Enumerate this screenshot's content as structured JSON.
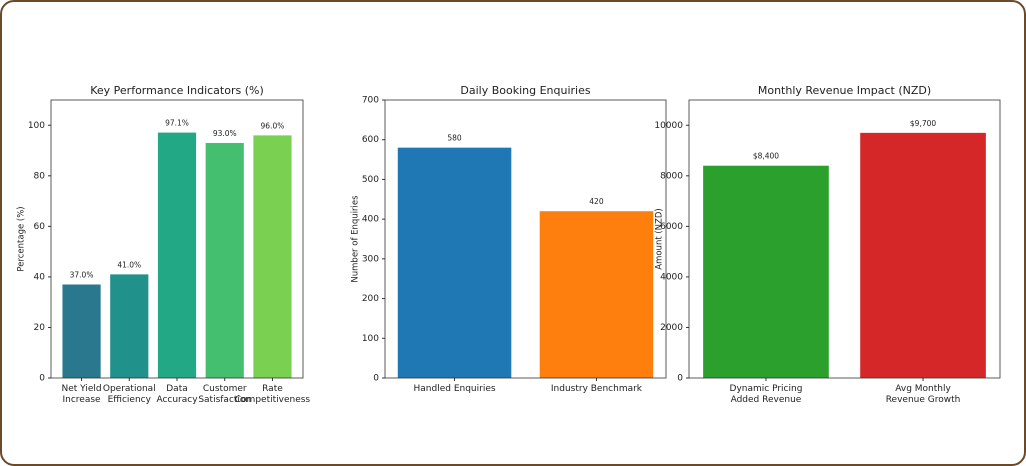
{
  "chart_data": [
    {
      "type": "bar",
      "title": "Key Performance Indicators (%)",
      "ylabel": "Percentage (%)",
      "categories": [
        [
          "Net Yield",
          "Increase"
        ],
        [
          "Operational",
          "Efficiency"
        ],
        [
          "Data",
          "Accuracy"
        ],
        [
          "Customer",
          "Satisfaction"
        ],
        [
          "Rate",
          "Competitiveness"
        ]
      ],
      "values": [
        37.0,
        41.0,
        97.1,
        93.0,
        96.0
      ],
      "value_labels": [
        "37.0%",
        "41.0%",
        "97.1%",
        "93.0%",
        "96.0%"
      ],
      "colors": [
        "#2a788e",
        "#21918c",
        "#22a884",
        "#44bf70",
        "#7ad151"
      ],
      "ylim": [
        0,
        110
      ],
      "yticks": [
        0,
        20,
        40,
        60,
        80,
        100
      ]
    },
    {
      "type": "bar",
      "title": "Daily Booking Enquiries",
      "ylabel": "Number of Enquiries",
      "categories": [
        [
          "Handled Enquiries"
        ],
        [
          "Industry Benchmark"
        ]
      ],
      "values": [
        580,
        420
      ],
      "colors": [
        "#1f77b4",
        "#ff7f0e"
      ],
      "ylim": [
        0,
        700
      ],
      "yticks": [
        0,
        100,
        200,
        300,
        400,
        500,
        600,
        700
      ]
    },
    {
      "type": "bar",
      "title": "Monthly Revenue Impact (NZD)",
      "ylabel": "Amount (NZD)",
      "categories": [
        [
          "Dynamic Pricing",
          "Added Revenue"
        ],
        [
          "Avg Monthly",
          "Revenue Growth"
        ]
      ],
      "values": [
        8400,
        9700
      ],
      "value_labels": [
        "$8,400",
        "$9,700"
      ],
      "colors": [
        "#2ca02c",
        "#d62728"
      ],
      "ylim": [
        0,
        11000
      ],
      "yticks": [
        0,
        2000,
        4000,
        6000,
        8000,
        10000
      ]
    }
  ]
}
